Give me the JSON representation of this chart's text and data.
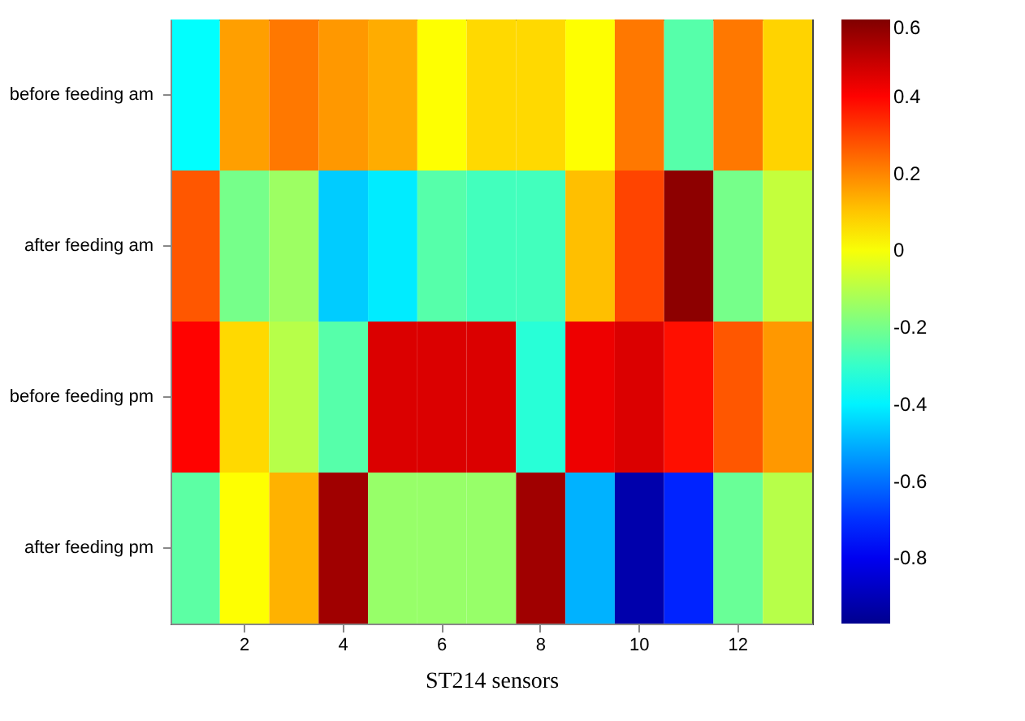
{
  "chart_data": {
    "type": "heatmap",
    "xlabel": "ST214 sensors",
    "categories": [
      null,
      "2",
      null,
      "4",
      null,
      "6",
      null,
      "8",
      null,
      "10",
      null,
      "12",
      null
    ],
    "y_categories": [
      "before feeding am",
      "after feeding am",
      "before feeding pm",
      "after feeding pm"
    ],
    "cells": [
      [
        -0.38,
        0.16,
        0.22,
        0.17,
        0.14,
        0.01,
        0.07,
        0.07,
        0.01,
        0.22,
        -0.25,
        0.22,
        0.08
      ],
      [
        0.27,
        -0.2,
        -0.14,
        -0.46,
        -0.41,
        -0.25,
        -0.28,
        -0.28,
        0.11,
        0.3,
        0.58,
        -0.2,
        -0.08
      ],
      [
        0.4,
        0.07,
        -0.1,
        -0.25,
        0.46,
        0.46,
        0.46,
        -0.32,
        0.43,
        0.46,
        0.38,
        0.27,
        0.17
      ],
      [
        -0.24,
        0.01,
        0.13,
        0.55,
        -0.15,
        -0.15,
        -0.15,
        0.55,
        -0.5,
        -0.92,
        -0.72,
        -0.22,
        -0.1
      ]
    ],
    "clim": [
      -0.97,
      0.6
    ],
    "cticks": [
      -0.8,
      -0.6,
      -0.4,
      -0.2,
      0,
      0.2,
      0.4,
      0.6
    ]
  }
}
